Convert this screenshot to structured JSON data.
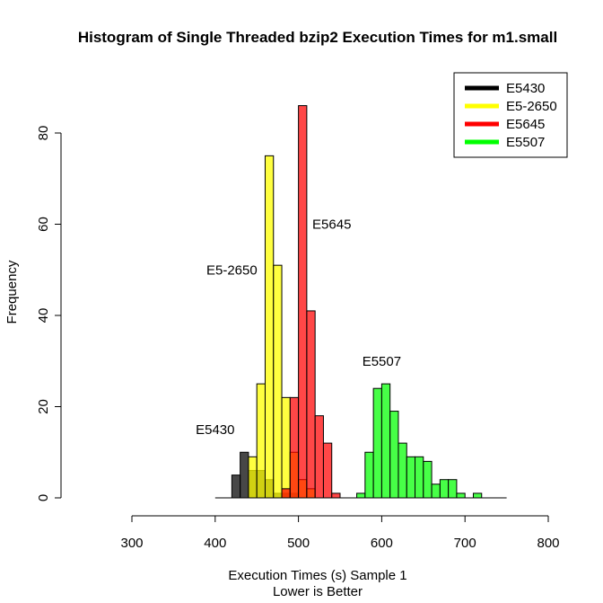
{
  "chart_data": {
    "type": "histogram",
    "title": "Histogram of Single Threaded bzip2 Execution Times for m1.small",
    "xlabel": "Execution Times (s) Sample 1",
    "xlabel2": "Lower is Better",
    "ylabel": "Frequency",
    "xlim": [
      300,
      800
    ],
    "ylim": [
      0,
      80
    ],
    "x_ticks": [
      "300",
      "400",
      "500",
      "600",
      "700",
      "800"
    ],
    "y_ticks": [
      "0",
      "20",
      "40",
      "60",
      "80"
    ],
    "bin_width": 10,
    "series": [
      {
        "name": "E5430",
        "color": "#000000",
        "fill": "rgba(0,0,0,0.72)",
        "bins": [
          {
            "x0": 420,
            "x1": 430,
            "count": 5
          },
          {
            "x0": 430,
            "x1": 440,
            "count": 10
          },
          {
            "x0": 440,
            "x1": 450,
            "count": 6
          },
          {
            "x0": 450,
            "x1": 460,
            "count": 6
          },
          {
            "x0": 460,
            "x1": 470,
            "count": 4
          },
          {
            "x0": 470,
            "x1": 480,
            "count": 1
          },
          {
            "x0": 480,
            "x1": 490,
            "count": 1
          },
          {
            "x0": 490,
            "x1": 500,
            "count": 1
          }
        ]
      },
      {
        "name": "E5-2650",
        "color": "#ffff00",
        "fill": "rgba(255,255,0,0.75)",
        "bins": [
          {
            "x0": 440,
            "x1": 450,
            "count": 9
          },
          {
            "x0": 450,
            "x1": 460,
            "count": 25
          },
          {
            "x0": 460,
            "x1": 470,
            "count": 75
          },
          {
            "x0": 470,
            "x1": 480,
            "count": 51
          },
          {
            "x0": 480,
            "x1": 490,
            "count": 22
          },
          {
            "x0": 490,
            "x1": 500,
            "count": 10
          },
          {
            "x0": 500,
            "x1": 510,
            "count": 4
          },
          {
            "x0": 510,
            "x1": 520,
            "count": 2
          }
        ]
      },
      {
        "name": "E5645",
        "color": "#ff0000",
        "fill": "rgba(255,0,0,0.72)",
        "bins": [
          {
            "x0": 480,
            "x1": 490,
            "count": 2
          },
          {
            "x0": 490,
            "x1": 500,
            "count": 22
          },
          {
            "x0": 500,
            "x1": 510,
            "count": 86
          },
          {
            "x0": 510,
            "x1": 520,
            "count": 41
          },
          {
            "x0": 520,
            "x1": 530,
            "count": 18
          },
          {
            "x0": 530,
            "x1": 540,
            "count": 12
          },
          {
            "x0": 540,
            "x1": 550,
            "count": 1
          }
        ]
      },
      {
        "name": "E5507",
        "color": "#00ff00",
        "fill": "rgba(0,255,0,0.72)",
        "bins": [
          {
            "x0": 570,
            "x1": 580,
            "count": 1
          },
          {
            "x0": 580,
            "x1": 590,
            "count": 10
          },
          {
            "x0": 590,
            "x1": 600,
            "count": 24
          },
          {
            "x0": 600,
            "x1": 610,
            "count": 25
          },
          {
            "x0": 610,
            "x1": 620,
            "count": 19
          },
          {
            "x0": 620,
            "x1": 630,
            "count": 12
          },
          {
            "x0": 630,
            "x1": 640,
            "count": 9
          },
          {
            "x0": 640,
            "x1": 650,
            "count": 9
          },
          {
            "x0": 650,
            "x1": 660,
            "count": 8
          },
          {
            "x0": 660,
            "x1": 670,
            "count": 3
          },
          {
            "x0": 670,
            "x1": 680,
            "count": 4
          },
          {
            "x0": 680,
            "x1": 690,
            "count": 4
          },
          {
            "x0": 690,
            "x1": 700,
            "count": 1
          },
          {
            "x0": 710,
            "x1": 720,
            "count": 1
          }
        ]
      }
    ],
    "baseline": {
      "x0": 400,
      "x1": 750
    },
    "annotations": [
      {
        "text": "E5430",
        "x": 400,
        "y": 15
      },
      {
        "text": "E5-2650",
        "x": 420,
        "y": 50
      },
      {
        "text": "E5645",
        "x": 540,
        "y": 60
      },
      {
        "text": "E5507",
        "x": 600,
        "y": 30
      }
    ],
    "legend_position": "top-right"
  }
}
